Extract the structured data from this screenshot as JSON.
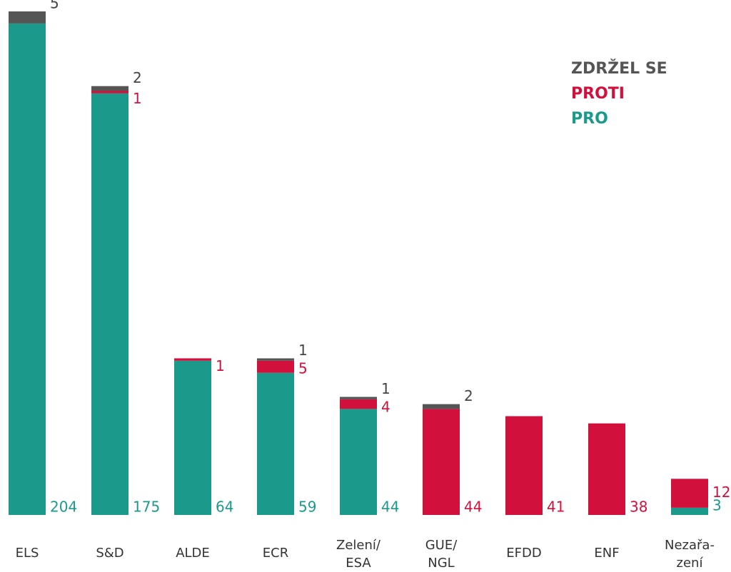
{
  "chart_data": {
    "type": "stacked_bar",
    "categories": [
      "ELS",
      "S&D",
      "ALDE",
      "ECR",
      "Zelení/\nESA",
      "GUE/\nNGL",
      "EFDD",
      "ENF",
      "Nezařa-\nzení"
    ],
    "series": [
      {
        "name": "PRO",
        "color": "#1b9a8b",
        "values": [
          204,
          175,
          64,
          59,
          44,
          0,
          0,
          0,
          3
        ]
      },
      {
        "name": "PROTI",
        "color": "#d2103c",
        "values": [
          0,
          1,
          1,
          5,
          4,
          44,
          41,
          38,
          12
        ]
      },
      {
        "name": "ZDRŽEL SE",
        "color": "#555555",
        "values": [
          5,
          2,
          0,
          1,
          1,
          2,
          0,
          0,
          0
        ]
      }
    ],
    "legend": "upper right"
  }
}
